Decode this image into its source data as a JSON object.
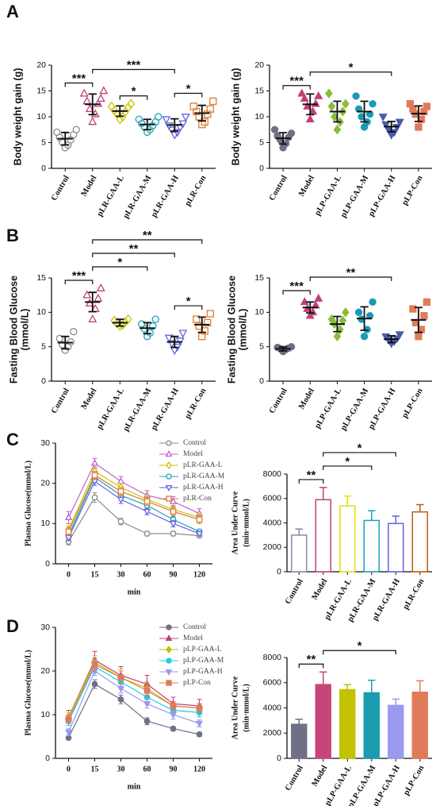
{
  "panel_labels": [
    "A",
    "B",
    "C",
    "D"
  ],
  "chart_data": [
    {
      "type": "dot",
      "ylabel": "Body weight gain (g)",
      "ylim": [
        0,
        20
      ],
      "yticks": [
        0,
        5,
        10,
        15,
        20
      ],
      "filled": false,
      "categories": [
        "Control",
        "Model",
        "pLR-GAA-L",
        "pLR-GAA-M",
        "pLR-GAA-H",
        "pLR-Con"
      ],
      "colors": [
        "#8a8a8a",
        "#c0417a",
        "#c8c400",
        "#1aa3b5",
        "#6262e0",
        "#e07b30"
      ],
      "markers": [
        "circle",
        "triangle",
        "diamond",
        "circle",
        "triangle-down",
        "square"
      ],
      "values": [
        5.75,
        12.4,
        11.1,
        8.5,
        8.4,
        10.7
      ],
      "errors": [
        1.2,
        2.0,
        1.0,
        1.0,
        1.2,
        1.5
      ],
      "points": [
        [
          4,
          4.5,
          5,
          5.5,
          6,
          6.5,
          7,
          7.5
        ],
        [
          9,
          10.5,
          11.5,
          12.5,
          13,
          13.5,
          14.5,
          15
        ],
        [
          9.5,
          10,
          10.5,
          11,
          11.2,
          11.8,
          12,
          12.5
        ],
        [
          7,
          7.5,
          8,
          8.3,
          8.7,
          9,
          9.5,
          10
        ],
        [
          6.5,
          7,
          7.5,
          8,
          8.3,
          8.7,
          9.5,
          10
        ],
        [
          8.5,
          9,
          10,
          10.5,
          11,
          11.5,
          12,
          13
        ]
      ],
      "annotations": [
        {
          "from": 0,
          "to": 1,
          "label": "***"
        },
        {
          "from": 2,
          "to": 3,
          "label": "*"
        },
        {
          "from": 4,
          "to": 5,
          "label": "*"
        },
        {
          "from": 1,
          "to": 4,
          "label": "***"
        }
      ]
    },
    {
      "type": "dot",
      "ylabel": "Body weight gain (g)",
      "ylim": [
        0,
        20
      ],
      "yticks": [
        0,
        5,
        10,
        15,
        20
      ],
      "filled": true,
      "categories": [
        "Control",
        "Model",
        "pLP-GAA-L",
        "pLP-GAA-M",
        "pLP-GAA-H",
        "pLP-Con"
      ],
      "colors": [
        "#6f6f86",
        "#c0417a",
        "#8cbd3a",
        "#1a9bb5",
        "#4a5aa8",
        "#e07a5a"
      ],
      "markers": [
        "circle",
        "triangle",
        "diamond",
        "circle",
        "triangle-down",
        "square"
      ],
      "values": [
        5.8,
        12.4,
        11.0,
        11.0,
        8.1,
        10.6
      ],
      "errors": [
        1.1,
        2.0,
        2.0,
        2.0,
        1.0,
        1.5
      ],
      "points": [
        [
          4,
          4.8,
          5.5,
          6,
          6.3,
          6.8,
          7.5
        ],
        [
          9.5,
          11,
          12,
          12.5,
          13.5,
          14,
          14.5
        ],
        [
          7.5,
          9,
          10,
          11,
          12,
          12.5,
          14.5
        ],
        [
          8,
          9,
          10,
          10.5,
          11.5,
          12.5,
          14
        ],
        [
          6.5,
          7,
          7.5,
          8,
          8.5,
          9,
          10
        ],
        [
          8,
          9.5,
          10.5,
          11,
          11.5,
          12,
          12.5
        ]
      ],
      "annotations": [
        {
          "from": 0,
          "to": 1,
          "label": "***"
        },
        {
          "from": 1,
          "to": 4,
          "label": "*"
        }
      ]
    },
    {
      "type": "dot",
      "ylabel": [
        "Fasting Blood Glucose",
        "(mmol/L)"
      ],
      "ylim": [
        0,
        15
      ],
      "yticks": [
        0,
        5,
        10,
        15
      ],
      "filled": false,
      "categories": [
        "Control",
        "Model",
        "pLR-GAA-L",
        "pLR-GAA-M",
        "pLR-GAA-H",
        "pLR-Con"
      ],
      "colors": [
        "#8a8a8a",
        "#c0417a",
        "#c8c400",
        "#1aa3b5",
        "#6262e0",
        "#e07b30"
      ],
      "markers": [
        "circle",
        "triangle",
        "diamond",
        "circle",
        "triangle-down",
        "square"
      ],
      "values": [
        5.6,
        11.5,
        8.5,
        7.7,
        5.7,
        8.2
      ],
      "errors": [
        0.9,
        1.4,
        0.5,
        0.8,
        0.8,
        1.1
      ],
      "points": [
        [
          4.5,
          5,
          5.3,
          5.7,
          6.2,
          7.2
        ],
        [
          9,
          10.5,
          11.3,
          12,
          12.5,
          13.5
        ],
        [
          8,
          8.2,
          8.4,
          8.6,
          8.8,
          9
        ],
        [
          6.5,
          7,
          7.6,
          8,
          8.3,
          9
        ],
        [
          4.5,
          5,
          5.5,
          5.9,
          6.3,
          7
        ],
        [
          6.5,
          7.3,
          8,
          8.5,
          9,
          9.8
        ]
      ],
      "annotations": [
        {
          "from": 0,
          "to": 1,
          "label": "***"
        },
        {
          "from": 4,
          "to": 5,
          "label": "*"
        },
        {
          "from": 1,
          "to": 3,
          "label": "*"
        },
        {
          "from": 1,
          "to": 4,
          "label": "**"
        },
        {
          "from": 1,
          "to": 5,
          "label": "**"
        }
      ]
    },
    {
      "type": "dot",
      "ylabel": [
        "Fasting Blood Glucose",
        "(mmol/L)"
      ],
      "ylim": [
        0,
        15
      ],
      "yticks": [
        0,
        5,
        10,
        15
      ],
      "filled": true,
      "categories": [
        "Control",
        "Model",
        "pLP-GAA-L",
        "pLP-GAA-M",
        "pLP-GAA-H",
        "pLP-Con"
      ],
      "colors": [
        "#6f6f86",
        "#c0417a",
        "#8cbd3a",
        "#1a9bb5",
        "#4a5aa8",
        "#e07a5a"
      ],
      "markers": [
        "circle",
        "triangle",
        "diamond",
        "circle",
        "triangle-down",
        "square"
      ],
      "values": [
        4.7,
        10.7,
        8.3,
        9.1,
        6.1,
        8.9
      ],
      "errors": [
        0.3,
        0.8,
        1.1,
        1.7,
        0.5,
        1.8
      ],
      "points": [
        [
          4.3,
          4.6,
          4.7,
          4.8,
          4.9,
          5
        ],
        [
          9.5,
          10,
          10.5,
          11,
          11.5,
          12
        ],
        [
          6.5,
          7.5,
          8.3,
          8.8,
          9,
          10
        ],
        [
          6.5,
          7.5,
          9,
          9.5,
          10,
          11.5
        ],
        [
          5.5,
          5.8,
          6,
          6.2,
          6.5,
          6.8
        ],
        [
          6.5,
          7.5,
          8.5,
          9.5,
          10.5,
          11.5
        ]
      ],
      "annotations": [
        {
          "from": 0,
          "to": 1,
          "label": "***"
        },
        {
          "from": 1,
          "to": 4,
          "label": "**"
        }
      ]
    },
    {
      "type": "line",
      "ylabel": "Plasma Glucose(mmol/L)",
      "xlabel": "min",
      "ylim": [
        0,
        30
      ],
      "yticks": [
        0,
        10,
        20,
        30
      ],
      "filled": false,
      "categories": [
        "0",
        "15",
        "30",
        "60",
        "90",
        "120"
      ],
      "series": [
        {
          "name": "Control",
          "color": "#8a8a8a",
          "marker": "circle",
          "values": [
            5.5,
            16.5,
            10.5,
            7.5,
            7.5,
            7.0
          ],
          "errors": [
            0.8,
            1.2,
            0.8,
            0.6,
            0.6,
            0.5
          ]
        },
        {
          "name": "Model",
          "color": "#c060d0",
          "marker": "triangle",
          "values": [
            11.5,
            25,
            20.5,
            17,
            15.5,
            12.5
          ],
          "errors": [
            1.5,
            1.2,
            1.2,
            1.2,
            1.2,
            1.2
          ]
        },
        {
          "name": "pLR-GAA-L",
          "color": "#c8c400",
          "marker": "diamond",
          "values": [
            8.5,
            23,
            19,
            16,
            13.5,
            11.5
          ],
          "errors": [
            1.0,
            1.0,
            1.0,
            1.0,
            1.0,
            1.0
          ]
        },
        {
          "name": "pLR-GAA-M",
          "color": "#1aa3b5",
          "marker": "circle",
          "values": [
            7,
            21.5,
            17,
            14.5,
            11,
            8
          ],
          "errors": [
            0.8,
            1.0,
            1.0,
            1.0,
            0.8,
            0.6
          ]
        },
        {
          "name": "pLR-GAA-H",
          "color": "#6262e0",
          "marker": "triangle-down",
          "values": [
            6.5,
            20.5,
            16,
            13,
            10,
            7.5
          ],
          "errors": [
            0.8,
            1.0,
            1.0,
            0.8,
            0.8,
            0.6
          ]
        },
        {
          "name": "pLR-Con",
          "color": "#e07b30",
          "marker": "square",
          "values": [
            8,
            22,
            18,
            15.5,
            13,
            11
          ],
          "errors": [
            1.0,
            1.0,
            1.0,
            1.0,
            1.0,
            1.0
          ]
        }
      ]
    },
    {
      "type": "bar",
      "ylabel": [
        "Area Under Curve",
        "(min·mmol/L)"
      ],
      "ylim": [
        0,
        8000
      ],
      "yticks": [
        0,
        2000,
        4000,
        6000,
        8000
      ],
      "filled": false,
      "categories": [
        "Control",
        "Model",
        "pLR-GAA-L",
        "pLR-GAA-M",
        "pLR-GAA-H",
        "pLR-Con"
      ],
      "colors": [
        "#8a8aa8",
        "#c0417a",
        "#e8e000",
        "#1aa3b5",
        "#6262e0",
        "#c05a10"
      ],
      "values": [
        3000,
        5900,
        5400,
        4200,
        3950,
        4900
      ],
      "errors": [
        500,
        1000,
        800,
        800,
        600,
        600
      ],
      "annotations": [
        {
          "from": 0,
          "to": 1,
          "label": "**"
        },
        {
          "from": 1,
          "to": 3,
          "label": "*"
        },
        {
          "from": 1,
          "to": 4,
          "label": "*"
        }
      ]
    },
    {
      "type": "line",
      "ylabel": "Plasma Glucose(mmol/L)",
      "xlabel": "min",
      "ylim": [
        0,
        30
      ],
      "yticks": [
        0,
        10,
        20,
        30
      ],
      "filled": true,
      "categories": [
        "0",
        "15",
        "30",
        "60",
        "90",
        "120"
      ],
      "series": [
        {
          "name": "Control",
          "color": "#6f6f86",
          "marker": "circle",
          "values": [
            4.7,
            17,
            13.5,
            8.5,
            6.8,
            5.5
          ],
          "errors": [
            0.5,
            1.0,
            1.0,
            0.8,
            0.5,
            0.5
          ]
        },
        {
          "name": "Model",
          "color": "#c0417a",
          "marker": "triangle",
          "values": [
            9.5,
            22.5,
            19,
            17,
            12.5,
            12
          ],
          "errors": [
            1.5,
            2.0,
            2.0,
            2.0,
            1.5,
            1.5
          ]
        },
        {
          "name": "pLP-GAA-L",
          "color": "#c2c200",
          "marker": "diamond",
          "values": [
            9.5,
            22,
            18.5,
            16,
            12,
            11.5
          ],
          "errors": [
            1.0,
            1.5,
            2.0,
            1.5,
            1.0,
            1.0
          ]
        },
        {
          "name": "pLP-GAA-M",
          "color": "#1ad0e0",
          "marker": "circle",
          "values": [
            8.5,
            21,
            17.5,
            14,
            11,
            10.5
          ],
          "errors": [
            1.0,
            1.5,
            1.5,
            1.5,
            1.0,
            1.0
          ]
        },
        {
          "name": "pLP-GAA-H",
          "color": "#9a9af0",
          "marker": "triangle-down",
          "values": [
            6,
            20,
            16,
            12.5,
            10,
            8
          ],
          "errors": [
            0.8,
            1.0,
            1.0,
            1.0,
            1.0,
            0.8
          ]
        },
        {
          "name": "pLP-Con",
          "color": "#e07a5a",
          "marker": "square",
          "values": [
            9,
            21.5,
            18.5,
            15.5,
            12,
            11.5
          ],
          "errors": [
            1.0,
            1.5,
            1.5,
            1.5,
            1.0,
            1.0
          ]
        }
      ]
    },
    {
      "type": "bar",
      "ylabel": [
        "Area Under Curve",
        "(min·mmol/L)"
      ],
      "ylim": [
        0,
        8000
      ],
      "yticks": [
        0,
        2000,
        4000,
        6000,
        8000
      ],
      "filled": true,
      "categories": [
        "Control",
        "Model",
        "pLP-GAA-L",
        "pLP-GAA-M",
        "pLP-GAA-H",
        "pLP-Con"
      ],
      "colors": [
        "#6f6f86",
        "#c8457a",
        "#c2c200",
        "#1a9bb0",
        "#9a9af0",
        "#e07a5a"
      ],
      "values": [
        2700,
        5850,
        5450,
        5200,
        4200,
        5250
      ],
      "errors": [
        400,
        1000,
        400,
        1000,
        500,
        900
      ],
      "annotations": [
        {
          "from": 0,
          "to": 1,
          "label": "**"
        },
        {
          "from": 1,
          "to": 4,
          "label": "*"
        }
      ]
    }
  ]
}
